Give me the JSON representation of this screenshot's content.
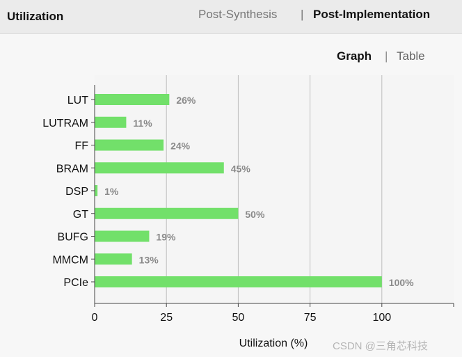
{
  "header": {
    "title": "Utilization",
    "tabs": [
      {
        "label": "Post-Synthesis",
        "active": false
      },
      {
        "label": "Post-Implementation",
        "active": true
      }
    ],
    "separator": "|"
  },
  "view_toggle": {
    "graph_label": "Graph",
    "table_label": "Table",
    "separator": "|",
    "active": "Graph"
  },
  "chart_data": {
    "type": "bar",
    "orientation": "horizontal",
    "categories": [
      "LUT",
      "LUTRAM",
      "FF",
      "BRAM",
      "DSP",
      "GT",
      "BUFG",
      "MMCM",
      "PCIe"
    ],
    "values": [
      26,
      11,
      24,
      45,
      1,
      50,
      19,
      13,
      100
    ],
    "data_labels": [
      "26%",
      "11%",
      "24%",
      "45%",
      "1%",
      "50%",
      "19%",
      "13%",
      "100%"
    ],
    "xlabel": "Utilization (%)",
    "xlim": [
      0,
      125
    ],
    "xticks": [
      0,
      25,
      50,
      75,
      100
    ],
    "grid": true,
    "bar_color": "#72e06a"
  },
  "watermark": "CSDN @三角芯科技"
}
